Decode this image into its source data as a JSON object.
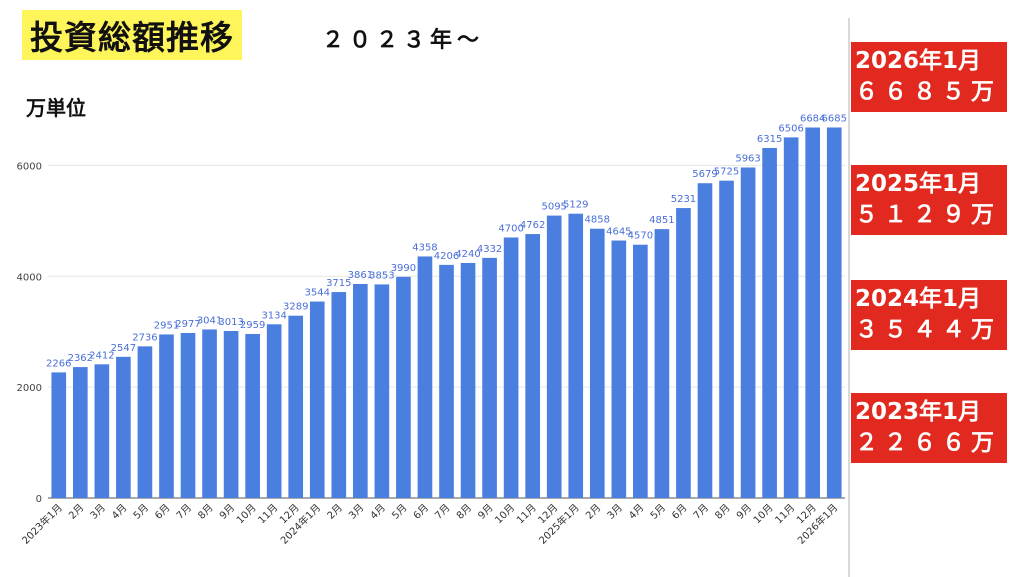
{
  "header": {
    "title": "投資総額推移",
    "subtitle": "２０２３年〜",
    "unit": "万単位"
  },
  "colors": {
    "bar": "#4a7fe0",
    "bar_label": "#4a6fd8",
    "title_highlight": "#fdf55a",
    "milestone_bg": "#e2291f",
    "grid": "#e6e6e6"
  },
  "milestones": [
    {
      "date": "2026年1月",
      "value": "６６８５万"
    },
    {
      "date": "2025年1月",
      "value": "５１２９万"
    },
    {
      "date": "2024年1月",
      "value": "３５４４万"
    },
    {
      "date": "2023年1月",
      "value": "２２６６万"
    }
  ],
  "chart_data": {
    "type": "bar",
    "ylim": [
      0,
      7000
    ],
    "yticks": [
      0,
      2000,
      4000,
      6000
    ],
    "grid": true,
    "categories": [
      "2023年1月",
      "2月",
      "3月",
      "4月",
      "5月",
      "6月",
      "7月",
      "8月",
      "9月",
      "10月",
      "11月",
      "12月",
      "2024年1月",
      "2月",
      "3月",
      "4月",
      "5月",
      "6月",
      "7月",
      "8月",
      "9月",
      "10月",
      "11月",
      "12月",
      "2025年1月",
      "2月",
      "3月",
      "4月",
      "5月",
      "6月",
      "7月",
      "8月",
      "9月",
      "10月",
      "11月",
      "12月",
      "2026年1月"
    ],
    "values": [
      2266,
      2362,
      2412,
      2547,
      2736,
      2951,
      2977,
      3041,
      3013,
      2959,
      3134,
      3289,
      3544,
      3715,
      3861,
      3853,
      3990,
      4358,
      4206,
      4240,
      4332,
      4700,
      4762,
      5095,
      5129,
      4858,
      4645,
      4570,
      4851,
      5231,
      5679,
      5725,
      5963,
      6315,
      6506,
      6684,
      6685
    ]
  }
}
